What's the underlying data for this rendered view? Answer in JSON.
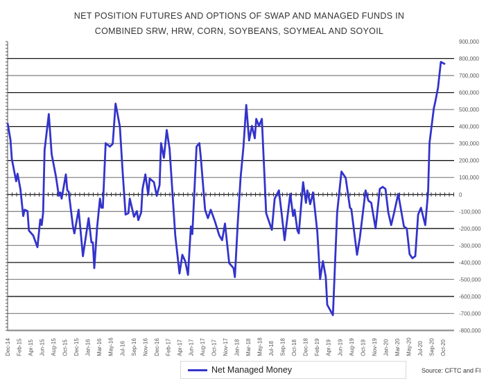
{
  "chart_data": {
    "type": "line",
    "title_lines": [
      "NET POSITION FUTURES AND OPTIONS OF SWAP AND MANAGED FUNDS IN",
      "COMBINED SRW, HRW, CORN, SOYBEANS, SOYMEAL AND SOYOIL"
    ],
    "xlabel": "",
    "ylabel": "",
    "ylim": [
      -800000,
      900000
    ],
    "xlim": [
      0,
      307
    ],
    "x_unit": "weeks since Dec-14",
    "yticks": [
      900000,
      800000,
      700000,
      600000,
      500000,
      400000,
      300000,
      200000,
      100000,
      0,
      -100000,
      -200000,
      -300000,
      -400000,
      -500000,
      -600000,
      -700000,
      -800000
    ],
    "ytick_labels": [
      "900,000",
      "800,000",
      "700,000",
      "600,000",
      "500,000",
      "400,000",
      "300,000",
      "200,000",
      "100,000",
      "0",
      "-100,000",
      "-200,000",
      "-300,000",
      "-400,000",
      "-500,000",
      "-600,000",
      "-700,000",
      "-800,000"
    ],
    "xtick_labels": [
      "Dec-14",
      "Feb-15",
      "Apr-15",
      "Jun-15",
      "Aug-15",
      "Oct-15",
      "Dec-15",
      "Jan-16",
      "Mar-16",
      "May-16",
      "Jul-16",
      "Sep-16",
      "Nov-16",
      "Dec-16",
      "Feb-17",
      "Apr-17",
      "Jun-17",
      "Aug-17",
      "Oct-17",
      "Nov-17",
      "Jan-18",
      "Mar-18",
      "May-18",
      "Jul-18",
      "Sep-18",
      "Oct-18",
      "Dec-18",
      "Feb-19",
      "Apr-19",
      "Jun-19",
      "Aug-19",
      "Oct-19",
      "Nov-19",
      "Jan-20",
      "Mar-20",
      "May-20",
      "Jul-20",
      "Sep-20",
      "Oct-20"
    ],
    "legend": "bottom",
    "grid": true,
    "series": [
      {
        "name": "Net Managed Money",
        "color": "#3333cc",
        "x": [
          0,
          2,
          3,
          6,
          7,
          9,
          11,
          12,
          14,
          15,
          18,
          21,
          23,
          24,
          25,
          26,
          29,
          31,
          34,
          36,
          37,
          38,
          41,
          42,
          43,
          46,
          47,
          50,
          53,
          57,
          59,
          60,
          61,
          63,
          65,
          66,
          67,
          69,
          72,
          74,
          76,
          79,
          81,
          83,
          85,
          86,
          89,
          91,
          92,
          94,
          95,
          97,
          99,
          100,
          103,
          105,
          107,
          108,
          110,
          112,
          114,
          118,
          121,
          123,
          125,
          127,
          129,
          130,
          133,
          135,
          136,
          139,
          141,
          143,
          146,
          149,
          151,
          153,
          156,
          159,
          160,
          162,
          164,
          166,
          168,
          170,
          172,
          174,
          175,
          177,
          179,
          182,
          186,
          188,
          191,
          193,
          195,
          199,
          201,
          202,
          204,
          205,
          208,
          210,
          211,
          213,
          214,
          215,
          218,
          220,
          222,
          224,
          225,
          229,
          232,
          235,
          238,
          241,
          242,
          246,
          248,
          252,
          254,
          256,
          259,
          262,
          264,
          266,
          268,
          270,
          272,
          275,
          279,
          281,
          283,
          285,
          287,
          289,
          291,
          294,
          296,
          297,
          300,
          301,
          303,
          305,
          308
        ],
        "values": [
          420000,
          322000,
          208000,
          78000,
          122000,
          33000,
          -127000,
          -90000,
          -98000,
          -212000,
          -241000,
          -310000,
          -147000,
          -180000,
          -106000,
          261000,
          473000,
          237000,
          106000,
          -8000,
          12000,
          -24000,
          118000,
          24000,
          16000,
          -188000,
          -229000,
          -90000,
          -363000,
          -139000,
          -282000,
          -282000,
          -433000,
          -192000,
          -24000,
          -78000,
          -78000,
          302000,
          282000,
          298000,
          535000,
          400000,
          127000,
          -118000,
          -110000,
          -24000,
          -131000,
          -98000,
          -151000,
          -106000,
          33000,
          118000,
          0,
          94000,
          73000,
          -8000,
          57000,
          302000,
          216000,
          380000,
          269000,
          -241000,
          -465000,
          -355000,
          -392000,
          -473000,
          -188000,
          -233000,
          282000,
          302000,
          220000,
          -90000,
          -139000,
          -90000,
          -159000,
          -241000,
          -269000,
          -171000,
          -404000,
          -433000,
          -486000,
          -171000,
          98000,
          278000,
          527000,
          318000,
          404000,
          331000,
          445000,
          404000,
          445000,
          -110000,
          -208000,
          -24000,
          24000,
          -118000,
          -269000,
          4000,
          -127000,
          -90000,
          -212000,
          -229000,
          73000,
          -49000,
          24000,
          -57000,
          -24000,
          12000,
          -220000,
          -498000,
          -392000,
          -486000,
          -649000,
          -710000,
          -106000,
          135000,
          98000,
          -78000,
          -86000,
          -355000,
          -253000,
          24000,
          -37000,
          -49000,
          -200000,
          33000,
          45000,
          33000,
          -106000,
          -180000,
          -110000,
          4000,
          -188000,
          -200000,
          -351000,
          -375000,
          -363000,
          -118000,
          -78000,
          -180000,
          16000,
          302000,
          506000,
          543000,
          629000,
          780000,
          767000
        ]
      }
    ]
  },
  "source": "Source: CFTC and FI"
}
